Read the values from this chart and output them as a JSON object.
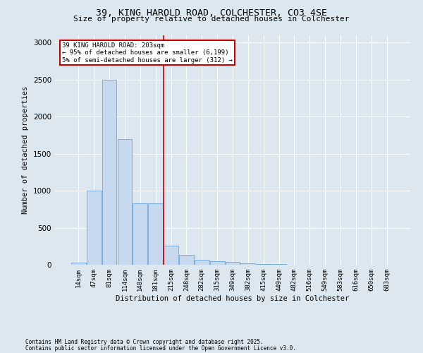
{
  "title": "39, KING HAROLD ROAD, COLCHESTER, CO3 4SE",
  "subtitle": "Size of property relative to detached houses in Colchester",
  "xlabel": "Distribution of detached houses by size in Colchester",
  "ylabel": "Number of detached properties",
  "categories": [
    "14sqm",
    "47sqm",
    "81sqm",
    "114sqm",
    "148sqm",
    "181sqm",
    "215sqm",
    "248sqm",
    "282sqm",
    "315sqm",
    "349sqm",
    "382sqm",
    "415sqm",
    "449sqm",
    "482sqm",
    "516sqm",
    "549sqm",
    "583sqm",
    "616sqm",
    "650sqm",
    "683sqm"
  ],
  "values": [
    30,
    1000,
    2500,
    1700,
    830,
    830,
    260,
    130,
    70,
    50,
    40,
    15,
    10,
    5,
    3,
    2,
    1,
    1,
    0,
    0,
    0
  ],
  "bar_color": "#c6d9ee",
  "bar_edge_color": "#7aafe0",
  "background_color": "#dce7f0",
  "grid_color": "#ffffff",
  "annotation_box_text": "39 KING HAROLD ROAD: 203sqm\n← 95% of detached houses are smaller (6,199)\n5% of semi-detached houses are larger (312) →",
  "annotation_box_color": "#cc0000",
  "footnote1": "Contains HM Land Registry data © Crown copyright and database right 2025.",
  "footnote2": "Contains public sector information licensed under the Open Government Licence v3.0.",
  "ylim": [
    0,
    3100
  ],
  "yticks": [
    0,
    500,
    1000,
    1500,
    2000,
    2500,
    3000
  ],
  "red_line_x": 5.5
}
